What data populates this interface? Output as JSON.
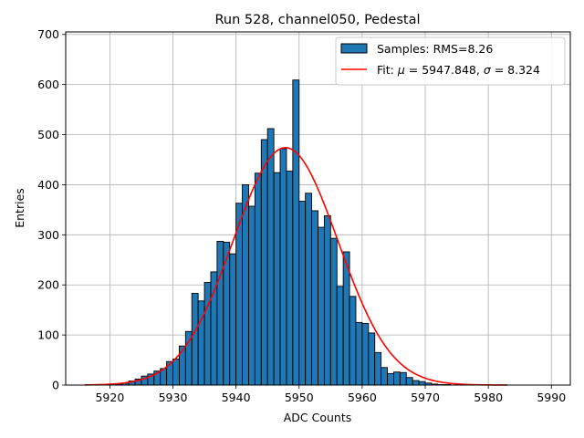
{
  "chart_data": {
    "type": "bar",
    "title": "Run 528, channel050, Pedestal",
    "xlabel": "ADC Counts",
    "ylabel": "Entries",
    "xlim": [
      5913,
      5993
    ],
    "ylim": [
      0,
      705
    ],
    "xticks": [
      5920,
      5930,
      5940,
      5950,
      5960,
      5970,
      5980,
      5990
    ],
    "yticks": [
      0,
      100,
      200,
      300,
      400,
      500,
      600,
      700
    ],
    "grid": true,
    "legend_position": "top-right",
    "colors": {
      "bars": "#1f77b4",
      "bar_edge": "#000000",
      "fit": "#ff0000",
      "grid": "#b0b0b0"
    },
    "histogram": {
      "name": "Samples: RMS=8.26",
      "bin_start": 5920,
      "bin_width": 1,
      "values": [
        1,
        2,
        4,
        8,
        12,
        18,
        22,
        28,
        33,
        47,
        52,
        78,
        107,
        183,
        168,
        205,
        226,
        287,
        285,
        262,
        363,
        400,
        357,
        423,
        490,
        512,
        424,
        472,
        427,
        609,
        367,
        383,
        348,
        315,
        338,
        293,
        197,
        266,
        177,
        125,
        123,
        104,
        65,
        35,
        23,
        26,
        25,
        15,
        9,
        7,
        4,
        2,
        1,
        1,
        0,
        0
      ]
    },
    "fit": {
      "name": "Fit: μ = 5947.848, σ = 8.324",
      "label_prefix": "Fit: ",
      "mu_symbol": "μ",
      "mu_text": " = 5947.848, ",
      "sigma_symbol": "σ",
      "sigma_text": " = 8.324",
      "mu": 5947.848,
      "sigma": 8.324,
      "amplitude": 474,
      "x_range": [
        5916,
        5983
      ]
    },
    "legend": {
      "samples_label": "Samples: RMS=8.26"
    }
  }
}
